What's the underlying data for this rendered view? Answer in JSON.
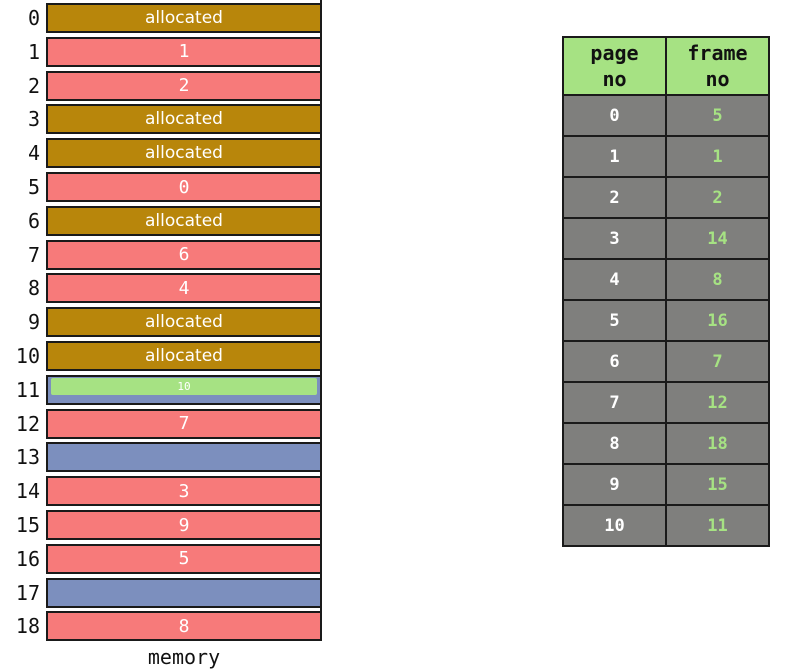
{
  "memory": {
    "label": "memory",
    "frames": [
      {
        "num": "0",
        "kind": "allocated",
        "text": "allocated"
      },
      {
        "num": "1",
        "kind": "page",
        "text": "1"
      },
      {
        "num": "2",
        "kind": "page",
        "text": "2"
      },
      {
        "num": "3",
        "kind": "allocated",
        "text": "allocated"
      },
      {
        "num": "4",
        "kind": "allocated",
        "text": "allocated"
      },
      {
        "num": "5",
        "kind": "page",
        "text": "0"
      },
      {
        "num": "6",
        "kind": "allocated",
        "text": "allocated"
      },
      {
        "num": "7",
        "kind": "page",
        "text": "6"
      },
      {
        "num": "8",
        "kind": "page",
        "text": "4"
      },
      {
        "num": "9",
        "kind": "allocated",
        "text": "allocated"
      },
      {
        "num": "10",
        "kind": "allocated",
        "text": "allocated"
      },
      {
        "num": "11",
        "kind": "partial",
        "text": "10"
      },
      {
        "num": "12",
        "kind": "page",
        "text": "7"
      },
      {
        "num": "13",
        "kind": "free",
        "text": ""
      },
      {
        "num": "14",
        "kind": "page",
        "text": "3"
      },
      {
        "num": "15",
        "kind": "page",
        "text": "9"
      },
      {
        "num": "16",
        "kind": "page",
        "text": "5"
      },
      {
        "num": "17",
        "kind": "free",
        "text": ""
      },
      {
        "num": "18",
        "kind": "page",
        "text": "8"
      }
    ]
  },
  "page_table": {
    "headers": [
      "page\nno",
      "frame\nno"
    ],
    "rows": [
      {
        "page": "0",
        "frame": "5"
      },
      {
        "page": "1",
        "frame": "1"
      },
      {
        "page": "2",
        "frame": "2"
      },
      {
        "page": "3",
        "frame": "14"
      },
      {
        "page": "4",
        "frame": "8"
      },
      {
        "page": "5",
        "frame": "16"
      },
      {
        "page": "6",
        "frame": "7"
      },
      {
        "page": "7",
        "frame": "12"
      },
      {
        "page": "8",
        "frame": "18"
      },
      {
        "page": "9",
        "frame": "15"
      },
      {
        "page": "10",
        "frame": "11"
      }
    ]
  },
  "colors": {
    "allocated": "#b8860b",
    "page": "#f77a7a",
    "free": "#7c8fbe",
    "highlight": "#a6e283",
    "table_cell": "#7f7f7d"
  }
}
